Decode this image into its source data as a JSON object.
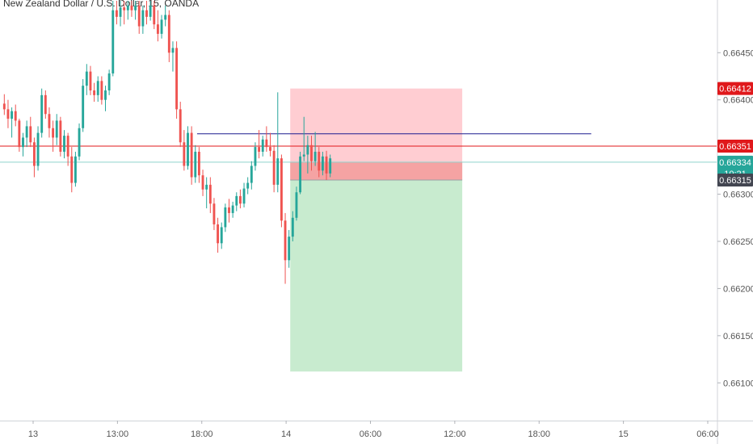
{
  "title": "New Zealand Dollar / U.S. Dollar, 15, OANDA",
  "chart_data": {
    "type": "candlestick",
    "title": "New Zealand Dollar / U.S. Dollar, 15, OANDA",
    "symbol": "NZDUSD",
    "interval": "15",
    "source": "OANDA",
    "price_axis": {
      "ticks": [
        0.6645,
        0.664,
        0.663,
        0.6625,
        0.662,
        0.6615,
        0.661
      ],
      "tick_labels": [
        "0.66450",
        "0.66400",
        "0.66300",
        "0.66250",
        "0.66200",
        "0.66150",
        "0.66100"
      ],
      "range": [
        0.6606,
        0.66505
      ]
    },
    "time_axis": {
      "labels": [
        "13",
        "13:00",
        "18:00",
        "14",
        "06:00",
        "12:00",
        "18:00",
        "15",
        "06:00"
      ]
    },
    "price_tags": [
      {
        "label": "0.66412",
        "value": 0.66412,
        "color": "#e0181b"
      },
      {
        "label": "0.66351",
        "value": 0.66351,
        "color": "#e0181b"
      },
      {
        "label": "0.66334",
        "value": 0.66334,
        "color": "#26a69a"
      },
      {
        "label": "10:21",
        "value": 0.66322,
        "color": "#26a69a"
      },
      {
        "label": "0.66315",
        "value": 0.66315,
        "color": "#434651"
      }
    ],
    "horizontal_lines": [
      {
        "value": 0.66351,
        "color": "#e0181b"
      },
      {
        "value": 0.66334,
        "color": "#8fd3cc"
      }
    ],
    "trend_line": {
      "value": 0.66364,
      "start": 0.275,
      "end": 0.825,
      "color": "#1b1b8f"
    },
    "short_position": {
      "entry": 0.66315,
      "stop": 0.66412,
      "target": 0.66112,
      "current": 0.66334,
      "start": 0.405,
      "end": 0.645
    },
    "colors": {
      "up": "#26a69a",
      "down": "#ef5350",
      "loss_zone": "#ffcdd2",
      "loss_active": "#f5a3a3",
      "profit_zone": "#c8ebcf"
    },
    "candles": [
      [
        0.66396,
        0.66406,
        0.66384,
        0.6639
      ],
      [
        0.6639,
        0.664,
        0.6637,
        0.6638
      ],
      [
        0.6638,
        0.66392,
        0.6636,
        0.66388
      ],
      [
        0.66388,
        0.66395,
        0.66372,
        0.66378
      ],
      [
        0.66378,
        0.6638,
        0.66345,
        0.6635
      ],
      [
        0.6635,
        0.66365,
        0.6634,
        0.6636
      ],
      [
        0.6636,
        0.66378,
        0.6635,
        0.66372
      ],
      [
        0.66372,
        0.66382,
        0.6635,
        0.66355
      ],
      [
        0.66355,
        0.6636,
        0.66318,
        0.6633
      ],
      [
        0.6633,
        0.66372,
        0.66325,
        0.66365
      ],
      [
        0.66365,
        0.66412,
        0.6636,
        0.66405
      ],
      [
        0.66405,
        0.6641,
        0.6638,
        0.66385
      ],
      [
        0.66385,
        0.66392,
        0.6636,
        0.6637
      ],
      [
        0.6637,
        0.66378,
        0.66345,
        0.6636
      ],
      [
        0.6636,
        0.66385,
        0.66352,
        0.66378
      ],
      [
        0.66378,
        0.66382,
        0.6634,
        0.66345
      ],
      [
        0.66345,
        0.66368,
        0.66338,
        0.66362
      ],
      [
        0.66362,
        0.66365,
        0.6633,
        0.6634
      ],
      [
        0.6634,
        0.6635,
        0.66302,
        0.66312
      ],
      [
        0.66312,
        0.66345,
        0.66308,
        0.6634
      ],
      [
        0.6634,
        0.66375,
        0.66336,
        0.6637
      ],
      [
        0.6637,
        0.66422,
        0.66366,
        0.66415
      ],
      [
        0.66415,
        0.66438,
        0.66405,
        0.6643
      ],
      [
        0.6643,
        0.66436,
        0.66405,
        0.6641
      ],
      [
        0.6641,
        0.66418,
        0.66398,
        0.66405
      ],
      [
        0.66405,
        0.66425,
        0.66398,
        0.6642
      ],
      [
        0.6642,
        0.66425,
        0.66395,
        0.664
      ],
      [
        0.664,
        0.66415,
        0.66388,
        0.6641
      ],
      [
        0.6641,
        0.66432,
        0.66405,
        0.66428
      ],
      [
        0.66428,
        0.66505,
        0.66425,
        0.66495
      ],
      [
        0.66495,
        0.66505,
        0.6648,
        0.66488
      ],
      [
        0.66488,
        0.66505,
        0.66478,
        0.66498
      ],
      [
        0.66498,
        0.66505,
        0.6648,
        0.66495
      ],
      [
        0.66495,
        0.66505,
        0.66485,
        0.665
      ],
      [
        0.665,
        0.66505,
        0.66488,
        0.66495
      ],
      [
        0.66495,
        0.66505,
        0.66485,
        0.665
      ],
      [
        0.665,
        0.66505,
        0.6647,
        0.66478
      ],
      [
        0.66478,
        0.665,
        0.6647,
        0.66495
      ],
      [
        0.66495,
        0.66505,
        0.6648,
        0.66488
      ],
      [
        0.66488,
        0.66505,
        0.66484,
        0.665
      ],
      [
        0.665,
        0.66505,
        0.66475,
        0.6648
      ],
      [
        0.6648,
        0.66495,
        0.66462,
        0.6647
      ],
      [
        0.6647,
        0.6649,
        0.66465,
        0.66485
      ],
      [
        0.66485,
        0.665,
        0.66478,
        0.6649
      ],
      [
        0.6649,
        0.66495,
        0.6644,
        0.6645
      ],
      [
        0.6645,
        0.66462,
        0.6643,
        0.66455
      ],
      [
        0.66455,
        0.66462,
        0.6638,
        0.6639
      ],
      [
        0.6639,
        0.66398,
        0.6635,
        0.66355
      ],
      [
        0.66355,
        0.66368,
        0.66325,
        0.6633
      ],
      [
        0.6633,
        0.66372,
        0.66326,
        0.66365
      ],
      [
        0.66365,
        0.66372,
        0.6631,
        0.66318
      ],
      [
        0.66318,
        0.66352,
        0.66312,
        0.66345
      ],
      [
        0.66345,
        0.6635,
        0.66312,
        0.6632
      ],
      [
        0.6632,
        0.66326,
        0.66298,
        0.66305
      ],
      [
        0.66305,
        0.66318,
        0.66285,
        0.6631
      ],
      [
        0.6631,
        0.66318,
        0.6628,
        0.6629
      ],
      [
        0.6629,
        0.66296,
        0.66262,
        0.66268
      ],
      [
        0.66268,
        0.66275,
        0.66238,
        0.66248
      ],
      [
        0.66248,
        0.6627,
        0.66242,
        0.66265
      ],
      [
        0.66265,
        0.6629,
        0.6626,
        0.66286
      ],
      [
        0.66286,
        0.66295,
        0.6627,
        0.6628
      ],
      [
        0.6628,
        0.66292,
        0.66275,
        0.66288
      ],
      [
        0.66288,
        0.66302,
        0.66282,
        0.66298
      ],
      [
        0.66298,
        0.66305,
        0.66285,
        0.6629
      ],
      [
        0.6629,
        0.66312,
        0.66286,
        0.66306
      ],
      [
        0.66306,
        0.66318,
        0.663,
        0.66312
      ],
      [
        0.66312,
        0.66335,
        0.66305,
        0.6633
      ],
      [
        0.6633,
        0.66355,
        0.66325,
        0.6635
      ],
      [
        0.6635,
        0.66368,
        0.66338,
        0.66345
      ],
      [
        0.66345,
        0.66362,
        0.6634,
        0.66358
      ],
      [
        0.66358,
        0.66372,
        0.66345,
        0.6635
      ],
      [
        0.6635,
        0.66365,
        0.6634,
        0.66346
      ],
      [
        0.66346,
        0.66352,
        0.66302,
        0.6631
      ],
      [
        0.6631,
        0.66408,
        0.66302,
        0.66338
      ],
      [
        0.66338,
        0.66342,
        0.66265,
        0.66272
      ],
      [
        0.66272,
        0.6628,
        0.66205,
        0.6623
      ],
      [
        0.6623,
        0.66262,
        0.66222,
        0.66255
      ],
      [
        0.66255,
        0.66282,
        0.6625,
        0.66275
      ],
      [
        0.66275,
        0.66308,
        0.66272,
        0.66302
      ],
      [
        0.66302,
        0.66345,
        0.663,
        0.6634
      ],
      [
        0.6634,
        0.66382,
        0.66335,
        0.66342
      ],
      [
        0.66342,
        0.66362,
        0.66322,
        0.66352
      ],
      [
        0.66352,
        0.66362,
        0.66325,
        0.66335
      ],
      [
        0.66335,
        0.66366,
        0.6633,
        0.66345
      ],
      [
        0.66345,
        0.6635,
        0.66318,
        0.66325
      ],
      [
        0.66325,
        0.66345,
        0.6632,
        0.6634
      ],
      [
        0.6634,
        0.66346,
        0.66315,
        0.66322
      ],
      [
        0.66322,
        0.66342,
        0.66318,
        0.66338
      ]
    ]
  }
}
